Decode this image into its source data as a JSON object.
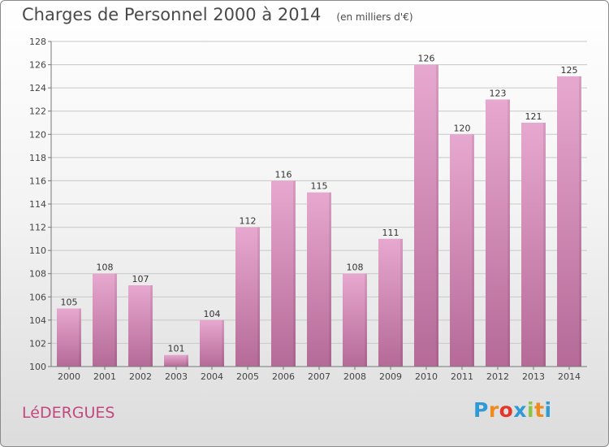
{
  "header": {
    "title": "Charges de Personnel 2000 à 2014",
    "subtitle": "(en milliers d'€)"
  },
  "footer": {
    "commune": "LéDERGUES",
    "logo_letters": [
      "P",
      "r",
      "o",
      "x",
      "i",
      "t",
      "i"
    ],
    "logo_colors": [
      "#2e9ad6",
      "#f08a1c",
      "#e2382b",
      "#2e9ad6",
      "#8cc63f",
      "#f08a1c",
      "#2e9ad6"
    ]
  },
  "chart_data": {
    "type": "bar",
    "categories": [
      "2000",
      "2001",
      "2002",
      "2003",
      "2004",
      "2005",
      "2006",
      "2007",
      "2008",
      "2009",
      "2010",
      "2011",
      "2012",
      "2013",
      "2014"
    ],
    "values": [
      105,
      108,
      107,
      101,
      104,
      112,
      116,
      115,
      108,
      111,
      126,
      120,
      123,
      121,
      125
    ],
    "data_labels": [
      "105",
      "108",
      "107",
      "101",
      "104",
      "112",
      "116",
      "115",
      "108",
      "111",
      "126",
      "120",
      "123",
      "121",
      "125"
    ],
    "ylim": [
      100,
      128
    ],
    "yticks": [
      "100",
      "102",
      "104",
      "106",
      "108",
      "110",
      "112",
      "114",
      "116",
      "118",
      "120",
      "122",
      "124",
      "126",
      "128"
    ],
    "grid": true,
    "bar_color_top": "#e7a8cf",
    "bar_color_bottom": "#b56a97",
    "grid_color": "#c8c8c8"
  }
}
